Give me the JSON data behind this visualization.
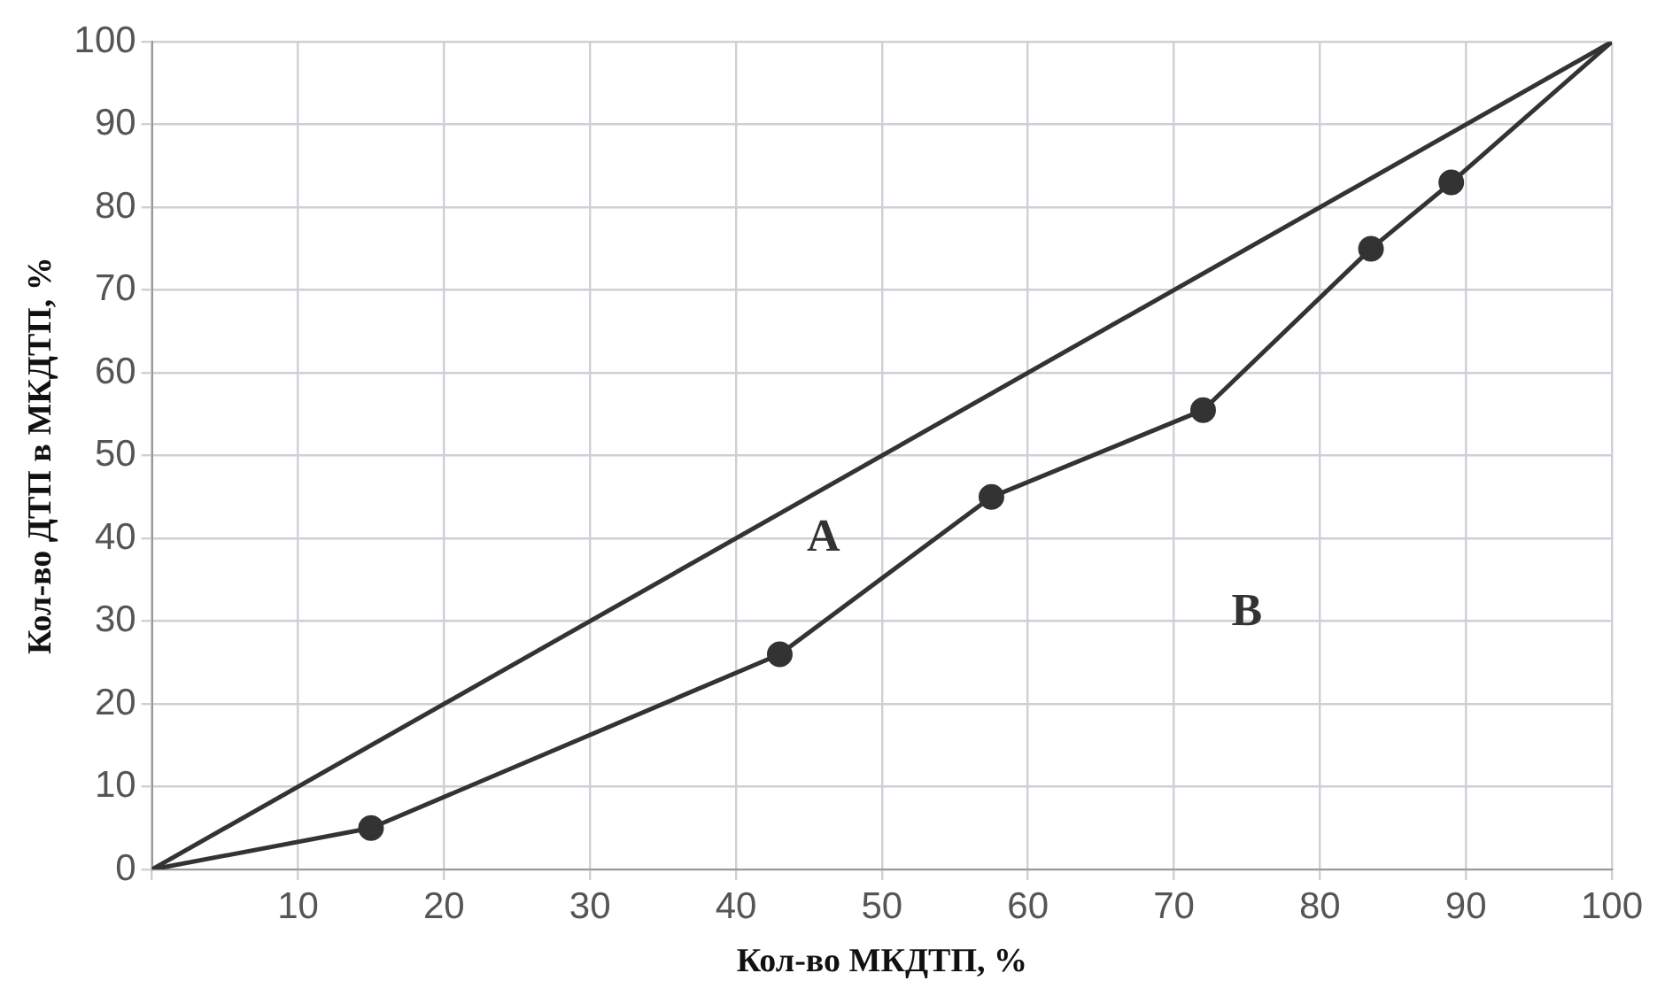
{
  "chart_data": {
    "type": "line",
    "xlabel": "Кол-во МКДТП, %",
    "ylabel": "Кол-во ДТП в МКДТП, %",
    "series": [
      {
        "color": "#333333",
        "x": [
          0,
          100
        ],
        "values": [
          0,
          100
        ]
      },
      {
        "color": "#333333",
        "x": [
          0,
          15,
          43,
          57.5,
          72,
          83.5,
          89,
          100
        ],
        "values": [
          0,
          5,
          26,
          45,
          55.5,
          75,
          83,
          100
        ],
        "marker": "circle"
      }
    ],
    "xlim": [
      0,
      100
    ],
    "xticks": [
      {
        "value": 0,
        "label": null
      },
      10,
      20,
      30,
      40,
      50,
      60,
      70,
      80,
      90,
      100
    ],
    "ylim": [
      0,
      100
    ],
    "yticks": [
      0,
      10,
      20,
      30,
      40,
      50,
      60,
      70,
      80,
      90,
      100
    ],
    "grid": true,
    "legend": false,
    "line_style": "solid",
    "annotations": [
      "A",
      "B"
    ]
  }
}
